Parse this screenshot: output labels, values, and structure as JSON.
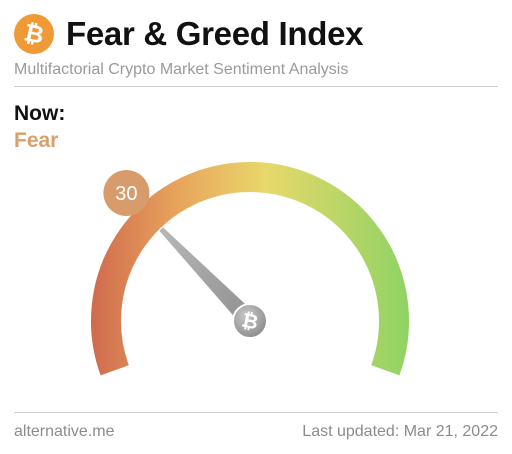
{
  "header": {
    "title": "Fear & Greed Index",
    "subtitle": "Multifactorial Crypto Market Sentiment Analysis",
    "logo_icon": "bitcoin-icon"
  },
  "status": {
    "now_label": "Now:",
    "classification": "Fear",
    "classification_color": "#d8a06a"
  },
  "gauge": {
    "value": 30,
    "value_label": "30",
    "min": 0,
    "max": 100,
    "badge_color": "#d89c6c",
    "colors": {
      "low": "#d06a4e",
      "mid_low": "#e8a65c",
      "mid": "#e8d86a",
      "high": "#8fd364"
    },
    "center_icon": "bitcoin-icon"
  },
  "footer": {
    "source": "alternative.me",
    "updated": "Last updated: Mar 21, 2022"
  }
}
